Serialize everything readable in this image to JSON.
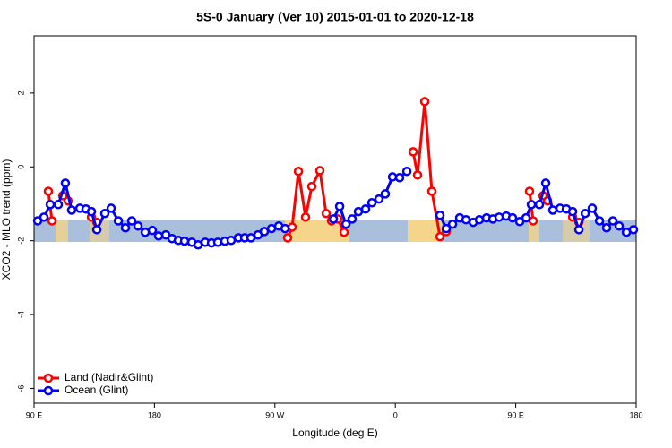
{
  "chart_data": {
    "type": "line",
    "title": "5S-0 January (Ver 10)   2015-01-01 to 2020-12-18",
    "xlabel": "Longitude (deg E)",
    "ylabel": "XCO2 - MLO trend (ppm)",
    "xlim": [
      90,
      540
    ],
    "ylim": [
      -6.4,
      3.55
    ],
    "xticks": [
      {
        "value": 90,
        "label": "90 E"
      },
      180,
      {
        "value": 270,
        "label": "90 W"
      },
      {
        "value": 360,
        "label": "0"
      },
      {
        "value": 450,
        "label": "90 E"
      },
      {
        "value": 540,
        "label": "180"
      }
    ],
    "yticks": [
      -6,
      -4,
      -2,
      0,
      2
    ],
    "legend": "bottom-left",
    "series": [
      {
        "name": "Land (Nadir&Glint)",
        "color": "#ff0000",
        "x": [
          100.7,
          103.4,
          null,
          111.4,
          115.4,
          null,
          132.9,
          136.9,
          null,
          279.5,
          282.9,
          287.6,
          292.9,
          297.6,
          303.6,
          308.3,
          312.3,
          317.0,
          321.7,
          null,
          373.3,
          376.6,
          382.0,
          387.3,
          393.4,
          398.1,
          null,
          460.3,
          463.0,
          null,
          470.4,
          473.8,
          null,
          492.5,
          497.2
        ],
        "values": [
          -0.66,
          -1.46,
          null,
          -0.78,
          -0.92,
          null,
          -1.36,
          -1.5,
          null,
          -1.92,
          -1.63,
          -0.12,
          -1.36,
          -0.53,
          -0.1,
          -1.26,
          -1.46,
          -1.41,
          -1.77,
          null,
          0.41,
          -0.22,
          1.77,
          -0.66,
          -1.89,
          -1.75,
          null,
          -0.66,
          -1.46,
          null,
          -0.78,
          -0.92,
          null,
          -1.36,
          -1.5
        ]
      },
      {
        "name": "Ocean (Glint)",
        "color": "#0000ff",
        "x": [
          92.7,
          97.4,
          102.1,
          108.1,
          113.4,
          118.1,
          124.2,
          128.8,
          132.9,
          136.9,
          142.9,
          147.6,
          153.0,
          158.3,
          163.0,
          167.7,
          173.1,
          178.4,
          183.1,
          188.5,
          193.1,
          197.8,
          202.5,
          207.9,
          212.6,
          217.9,
          222.6,
          227.3,
          232.6,
          237.3,
          242.7,
          247.4,
          252.1,
          257.4,
          262.1,
          267.5,
          272.9,
          277.6,
          null,
          313.7,
          318.4,
          323.1,
          327.7,
          332.4,
          337.8,
          342.5,
          347.8,
          352.5,
          357.9,
          363.2,
          368.6,
          null,
          393.4,
          398.1,
          402.8,
          408.1,
          412.8,
          418.2,
          422.8,
          428.2,
          432.9,
          437.6,
          442.9,
          447.6,
          453.0,
          457.7,
          461.7,
          467.7,
          472.4,
          477.7,
          483.1,
          487.8,
          492.5,
          497.2,
          501.9,
          507.2,
          512.6,
          517.9,
          522.6,
          527.3,
          532.7,
          538.0
        ],
        "values": [
          -1.46,
          -1.36,
          -1.02,
          -1.02,
          -0.44,
          -1.17,
          -1.12,
          -1.14,
          -1.21,
          -1.7,
          -1.26,
          -1.12,
          -1.46,
          -1.65,
          -1.46,
          -1.6,
          -1.77,
          -1.72,
          -1.87,
          -1.84,
          -1.94,
          -1.99,
          -2.01,
          -2.04,
          -2.11,
          -2.04,
          -2.06,
          -2.04,
          -2.01,
          -1.99,
          -1.92,
          -1.92,
          -1.92,
          -1.84,
          -1.75,
          -1.67,
          -1.6,
          -1.67,
          null,
          -1.41,
          -1.07,
          -1.55,
          -1.41,
          -1.21,
          -1.14,
          -0.97,
          -0.87,
          -0.73,
          -0.27,
          -0.29,
          -0.12,
          null,
          -1.31,
          -1.67,
          -1.55,
          -1.38,
          -1.43,
          -1.5,
          -1.43,
          -1.38,
          -1.41,
          -1.36,
          -1.33,
          -1.38,
          -1.48,
          -1.38,
          -1.02,
          -1.02,
          -0.44,
          -1.17,
          -1.12,
          -1.14,
          -1.21,
          -1.7,
          -1.26,
          -1.12,
          -1.46,
          -1.65,
          -1.46,
          -1.6,
          -1.77,
          -1.7
        ]
      }
    ]
  }
}
